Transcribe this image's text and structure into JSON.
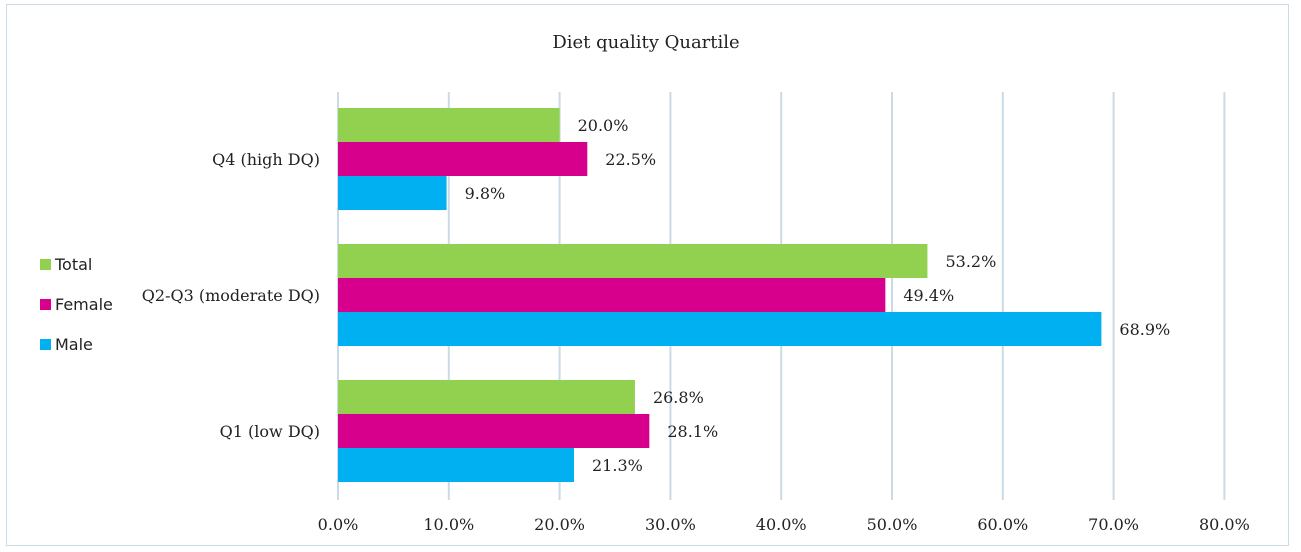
{
  "chart_data": {
    "type": "bar",
    "orientation": "horizontal",
    "title": "Diet quality Quartile",
    "categories": [
      "Q4 (high DQ)",
      "Q2-Q3 (moderate DQ)",
      "Q1 (low DQ)"
    ],
    "series": [
      {
        "name": "Total",
        "color": "#92d050",
        "values": [
          20.0,
          53.2,
          26.8
        ],
        "labels": [
          "20.0%",
          "53.2%",
          "26.8%"
        ]
      },
      {
        "name": "Female",
        "color": "#d6008c",
        "values": [
          22.5,
          49.4,
          28.1
        ],
        "labels": [
          "22.5%",
          "49.4%",
          "28.1%"
        ]
      },
      {
        "name": "Male",
        "color": "#00b0f0",
        "values": [
          9.8,
          68.9,
          21.3
        ],
        "labels": [
          "9.8%",
          "68.9%",
          "21.3%"
        ]
      }
    ],
    "xlim": [
      0,
      80
    ],
    "xticks": [
      0,
      10,
      20,
      30,
      40,
      50,
      60,
      70,
      80
    ],
    "xtick_labels": [
      "0.0%",
      "10.0%",
      "20.0%",
      "30.0%",
      "40.0%",
      "50.0%",
      "60.0%",
      "70.0%",
      "80.0%"
    ],
    "grid": true,
    "legend_position": "left"
  }
}
